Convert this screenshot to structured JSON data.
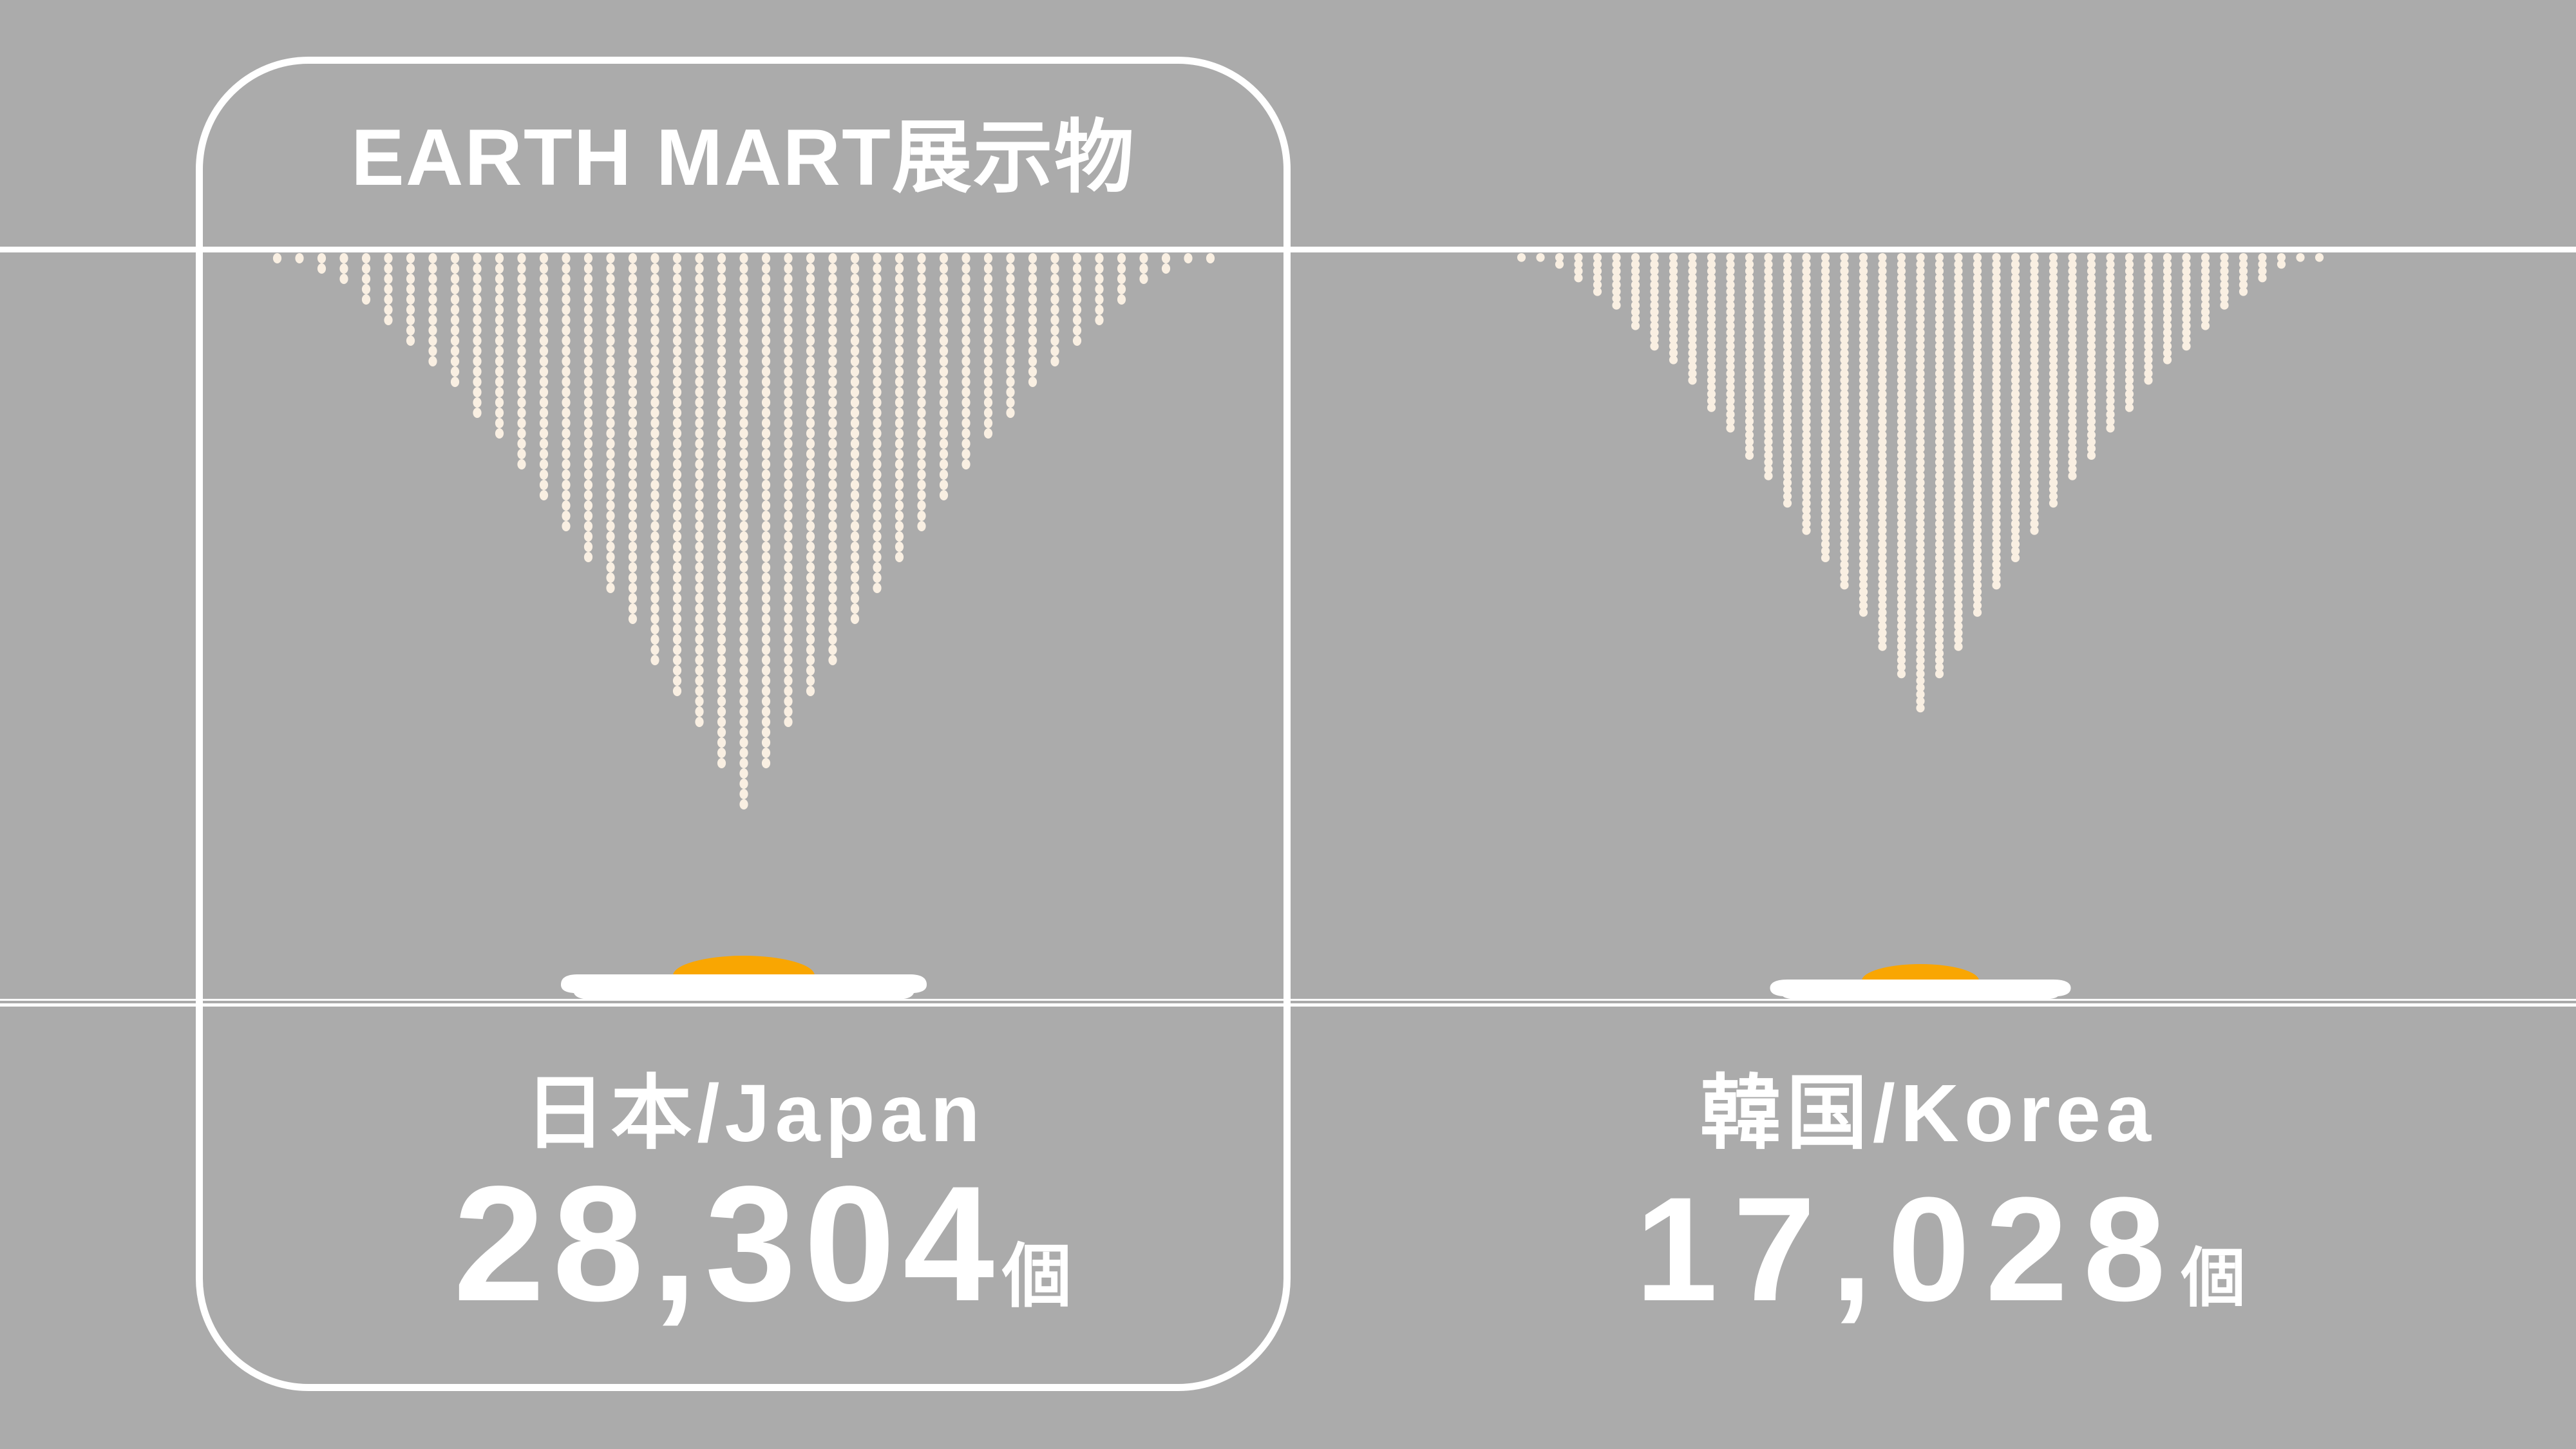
{
  "page": {
    "background_color": "#ABABAB",
    "foreground_color": "#FFFFFF"
  },
  "card": {
    "title": "EARTH MART展示物"
  },
  "chart_data": {
    "type": "pictogram",
    "title": "EARTH MART展示物",
    "unit": "個",
    "categories": [
      "日本/Japan",
      "韓国/Korea"
    ],
    "values": [
      28304,
      17028
    ],
    "series": [
      {
        "country_ja": "日本",
        "country_en": "Japan",
        "label": "日本/Japan",
        "value": 28304,
        "value_text": "28,304",
        "unit": "個"
      },
      {
        "country_ja": "韓国",
        "country_en": "Korea",
        "label": "韓国/Korea",
        "value": 17028,
        "value_text": "17,028",
        "unit": "個"
      }
    ],
    "legend_position": "none",
    "grid": "off",
    "colors": {
      "egg_bead": "#F9EFE2",
      "egg_yolk": "#F9A602",
      "plate": "#FFFFFF",
      "background": "#ABABAB",
      "text": "#FFFFFF"
    }
  }
}
